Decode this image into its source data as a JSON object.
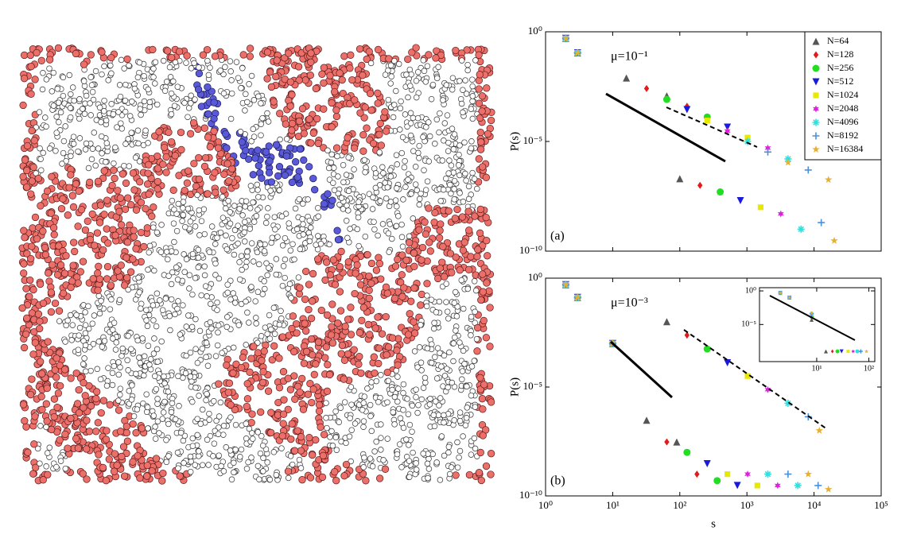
{
  "chart_data": [
    {
      "type": "scatter",
      "log": true,
      "ylabel": "P(s)",
      "annotation": "μ=10⁻¹",
      "panel": "(a)",
      "legend": "upper right",
      "xtick_labels": false,
      "xlim": [
        1,
        100000
      ],
      "ylim": [
        1e-10,
        1
      ],
      "xticks": [
        {
          "value": 1,
          "label": "10⁰"
        },
        {
          "value": 10,
          "label": "10¹"
        },
        {
          "value": 100,
          "label": "10²"
        },
        {
          "value": 1000,
          "label": "10³"
        },
        {
          "value": 10000,
          "label": "10⁴"
        },
        {
          "value": 100000,
          "label": "10⁵"
        }
      ],
      "yticks": [
        {
          "value": 1,
          "label": "10⁰"
        },
        {
          "value": 1e-05,
          "label": "10⁻⁵"
        },
        {
          "value": 1e-10,
          "label": "10⁻¹⁰"
        }
      ],
      "series": [
        {
          "name": "N=64",
          "color": "#555555",
          "marker": "triangle",
          "x": [
            2,
            3,
            16,
            64,
            100
          ],
          "values": [
            0.5,
            0.11,
            0.0078,
            0.0012,
            2e-07
          ]
        },
        {
          "name": "N=128",
          "color": "#e31a1c",
          "marker": "diamond",
          "x": [
            2,
            3,
            32,
            128,
            200
          ],
          "values": [
            0.5,
            0.11,
            0.0026,
            0.0004,
            1e-07
          ]
        },
        {
          "name": "N=256",
          "color": "#22dd22",
          "marker": "circle",
          "x": [
            2,
            3,
            64,
            256,
            400
          ],
          "values": [
            0.5,
            0.11,
            0.00083,
            0.00013,
            5e-08
          ]
        },
        {
          "name": "N=512",
          "color": "#1a1add",
          "marker": "triangle-down",
          "x": [
            2,
            3,
            128,
            512,
            800
          ],
          "values": [
            0.5,
            0.11,
            0.00028,
            4.5e-05,
            2e-08
          ]
        },
        {
          "name": "N=1024",
          "color": "#e8e800",
          "marker": "square",
          "x": [
            2,
            3,
            256,
            1024,
            1600
          ],
          "values": [
            0.5,
            0.11,
            9e-05,
            1.5e-05,
            1e-08
          ]
        },
        {
          "name": "N=2048",
          "color": "#e020e0",
          "marker": "star6",
          "x": [
            2,
            3,
            512,
            2048,
            3200
          ],
          "values": [
            0.5,
            0.11,
            3e-05,
            5e-06,
            5e-09
          ]
        },
        {
          "name": "N=4096",
          "color": "#30e0e0",
          "marker": "asterisk",
          "x": [
            2,
            3,
            1024,
            4096,
            6400
          ],
          "values": [
            0.5,
            0.11,
            1e-05,
            1.6e-06,
            1e-09
          ]
        },
        {
          "name": "N=8192",
          "color": "#4a90d9",
          "marker": "plus",
          "x": [
            2,
            3,
            2048,
            8192,
            12800
          ],
          "values": [
            0.5,
            0.11,
            3.3e-06,
            5e-07,
            2e-09
          ]
        },
        {
          "name": "N=16384",
          "color": "#e8b030",
          "marker": "star",
          "x": [
            2,
            3,
            4096,
            16384,
            20000
          ],
          "values": [
            0.5,
            0.11,
            1.1e-06,
            1.8e-07,
            3e-10
          ]
        }
      ]
    },
    {
      "type": "scatter",
      "log": true,
      "ylabel": "P(s)",
      "xlabel": "s",
      "annotation": "μ=10⁻³",
      "panel": "(b)",
      "xtick_labels": true,
      "xlim": [
        1,
        100000
      ],
      "ylim": [
        1e-10,
        1
      ],
      "xticks": [
        {
          "value": 1,
          "label": "10⁰"
        },
        {
          "value": 10,
          "label": "10¹"
        },
        {
          "value": 100,
          "label": "10²"
        },
        {
          "value": 1000,
          "label": "10³"
        },
        {
          "value": 10000,
          "label": "10⁴"
        },
        {
          "value": 100000,
          "label": "10⁵"
        }
      ],
      "yticks": [
        {
          "value": 1,
          "label": "10⁰"
        },
        {
          "value": 1e-05,
          "label": "10⁻⁵"
        },
        {
          "value": 1e-10,
          "label": "10⁻¹⁰"
        }
      ],
      "series": [
        {
          "color": "#555555",
          "marker": "triangle",
          "x": [
            2,
            3,
            10,
            32,
            64,
            90
          ],
          "values": [
            0.5,
            0.13,
            0.001,
            3e-07,
            0.01,
            3e-08
          ]
        },
        {
          "color": "#e31a1c",
          "marker": "diamond",
          "x": [
            2,
            3,
            10,
            64,
            128,
            180
          ],
          "values": [
            0.5,
            0.13,
            0.001,
            3e-08,
            0.0024,
            1e-09
          ]
        },
        {
          "color": "#22dd22",
          "marker": "circle",
          "x": [
            2,
            3,
            10,
            128,
            256,
            360
          ],
          "values": [
            0.5,
            0.13,
            0.001,
            1e-08,
            0.00056,
            5e-10
          ]
        },
        {
          "color": "#1a1add",
          "marker": "triangle-down",
          "x": [
            2,
            3,
            10,
            256,
            512,
            720
          ],
          "values": [
            0.5,
            0.13,
            0.001,
            3e-09,
            0.00013,
            3e-10
          ]
        },
        {
          "color": "#e8e800",
          "marker": "square",
          "x": [
            2,
            3,
            10,
            512,
            1024,
            1430
          ],
          "values": [
            0.5,
            0.13,
            0.001,
            1e-09,
            3.2e-05,
            3e-10
          ]
        },
        {
          "color": "#e020e0",
          "marker": "star6",
          "x": [
            2,
            3,
            10,
            1024,
            2048,
            2870
          ],
          "values": [
            0.5,
            0.13,
            0.001,
            1e-09,
            7.6e-06,
            3e-10
          ]
        },
        {
          "color": "#30e0e0",
          "marker": "asterisk",
          "x": [
            2,
            3,
            10,
            2048,
            4096,
            5730
          ],
          "values": [
            0.5,
            0.13,
            0.001,
            1e-09,
            1.8e-06,
            3e-10
          ]
        },
        {
          "color": "#4a90d9",
          "marker": "plus",
          "x": [
            2,
            3,
            10,
            4096,
            8192,
            11500
          ],
          "values": [
            0.5,
            0.13,
            0.001,
            1e-09,
            4.3e-07,
            3e-10
          ]
        },
        {
          "color": "#e8b030",
          "marker": "star",
          "x": [
            2,
            3,
            10,
            8192,
            12000,
            16384
          ],
          "values": [
            0.5,
            0.13,
            0.001,
            1e-09,
            1e-07,
            2e-10
          ]
        }
      ]
    },
    {
      "type": "scatter",
      "log": true,
      "xtick_labels": true,
      "xlim": [
        0.8,
        130
      ],
      "ylim": [
        3e-11,
        3
      ],
      "xticks": [
        {
          "value": 10,
          "label": "10¹"
        },
        {
          "value": 100,
          "label": "10²"
        }
      ],
      "yticks": [
        {
          "value": 1,
          "label": "10⁰"
        },
        {
          "value": 1e-05,
          "label": "10⁻⁵"
        }
      ],
      "series": [
        {
          "color": "#555555",
          "marker": "triangle",
          "x": [
            2,
            3,
            8,
            15
          ],
          "values": [
            0.5,
            0.1,
            5e-05,
            1e-09
          ]
        },
        {
          "color": "#e31a1c",
          "marker": "diamond",
          "x": [
            2,
            3,
            8,
            20
          ],
          "values": [
            0.5,
            0.1,
            0.0001,
            1e-09
          ]
        },
        {
          "color": "#22dd22",
          "marker": "circle",
          "x": [
            2,
            3,
            8,
            25
          ],
          "values": [
            0.5,
            0.1,
            0.00015,
            1e-09
          ]
        },
        {
          "color": "#1a1add",
          "marker": "triangle-down",
          "x": [
            2,
            3,
            8,
            30
          ],
          "values": [
            0.5,
            0.1,
            0.0002,
            1e-09
          ]
        },
        {
          "color": "#e8e800",
          "marker": "square",
          "x": [
            2,
            3,
            8,
            40
          ],
          "values": [
            0.5,
            0.1,
            0.0003,
            1e-09
          ]
        },
        {
          "color": "#e020e0",
          "marker": "star6",
          "x": [
            2,
            3,
            8,
            50
          ],
          "values": [
            0.5,
            0.1,
            0.0003,
            1e-09
          ]
        },
        {
          "color": "#30e0e0",
          "marker": "asterisk",
          "x": [
            2,
            3,
            8,
            60
          ],
          "values": [
            0.5,
            0.1,
            0.0004,
            1e-09
          ]
        },
        {
          "color": "#4a90d9",
          "marker": "plus",
          "x": [
            2,
            3,
            8,
            70
          ],
          "values": [
            0.5,
            0.1,
            0.0004,
            1e-09
          ]
        },
        {
          "color": "#e8b030",
          "marker": "star",
          "x": [
            2,
            3,
            8,
            90
          ],
          "values": [
            0.5,
            0.1,
            0.0005,
            1e-09
          ]
        }
      ]
    }
  ]
}
